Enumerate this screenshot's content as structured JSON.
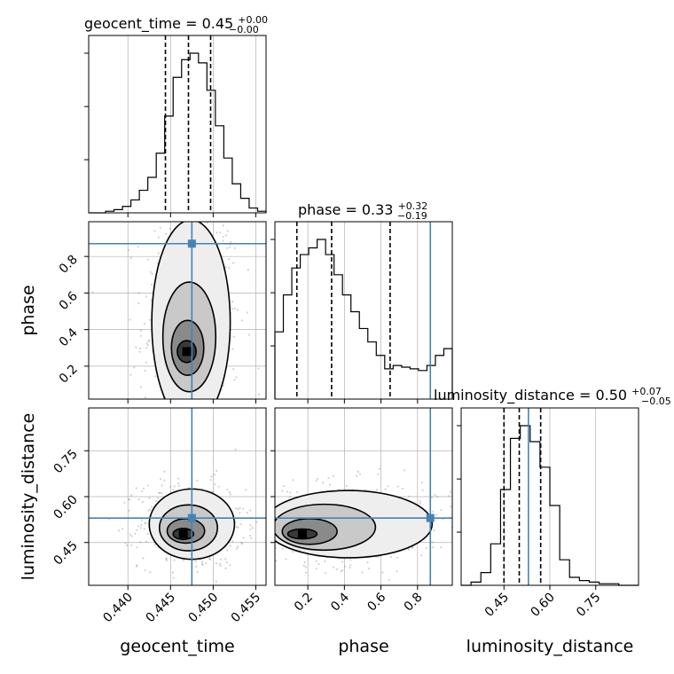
{
  "chart_data": {
    "type": "corner",
    "parameters": [
      "geocent_time",
      "phase",
      "luminosity_distance"
    ],
    "injection": {
      "geocent_time": 0.4475,
      "phase": 0.87,
      "luminosity_distance": 0.53
    },
    "ranges": {
      "geocent_time": [
        0.4354,
        0.4562
      ],
      "phase": [
        0.02,
        0.99
      ],
      "luminosity_distance": [
        0.31,
        0.89
      ]
    },
    "titles": {
      "geocent_time": {
        "label": "geocent_time = 0.45",
        "plus": "+0.00",
        "minus": "−0.00"
      },
      "phase": {
        "label": "phase = 0.33",
        "plus": "+0.32",
        "minus": "−0.19"
      },
      "luminosity_distance": {
        "label": "luminosity_distance = 0.50",
        "plus": "+0.07",
        "minus": "−0.05"
      }
    },
    "quantiles": {
      "geocent_time": [
        0.4444,
        0.4471,
        0.4497
      ],
      "phase": [
        0.14,
        0.33,
        0.65
      ],
      "luminosity_distance": [
        0.45,
        0.5,
        0.57
      ]
    },
    "ticks": {
      "geocent_time": [
        "0.440",
        "0.445",
        "0.450",
        "0.455"
      ],
      "phase_x": [
        "0.2",
        "0.4",
        "0.6",
        "0.8"
      ],
      "phase_y": [
        "0.2",
        "0.4",
        "0.6",
        "0.8"
      ],
      "luminosity_distance": [
        "0.45",
        "0.60",
        "0.75"
      ]
    },
    "histograms": {
      "geocent_time": [
        0,
        0,
        1,
        2,
        4,
        8,
        14,
        22,
        37,
        60,
        84,
        95,
        99,
        93,
        76,
        54,
        34,
        18,
        9,
        3,
        1
      ],
      "phase": [
        40,
        62,
        78,
        86,
        90,
        95,
        86,
        74,
        62,
        52,
        42,
        34,
        26,
        18,
        20,
        19,
        18,
        17,
        20,
        26,
        30
      ],
      "luminosity_distance": [
        0,
        2,
        8,
        26,
        60,
        92,
        100,
        90,
        74,
        50,
        16,
        5,
        3,
        2,
        1,
        1,
        0,
        0
      ]
    },
    "contours": {
      "geocent_time_phase": [
        {
          "center": [
            0.4469,
            0.28
          ],
          "radius": [
            0.0011,
            0.06
          ]
        },
        {
          "center": [
            0.447,
            0.3
          ],
          "radius": [
            0.0019,
            0.15
          ]
        },
        {
          "center": [
            0.4472,
            0.36
          ],
          "radius": [
            0.0031,
            0.3
          ]
        },
        {
          "center": [
            0.4474,
            0.44
          ],
          "radius": [
            0.0046,
            0.56
          ]
        }
      ],
      "geocent_time_luminosity_distance": [
        {
          "center": [
            0.4465,
            0.478
          ],
          "radius": [
            0.0012,
            0.018
          ]
        },
        {
          "center": [
            0.4468,
            0.488
          ],
          "radius": [
            0.0022,
            0.04
          ]
        },
        {
          "center": [
            0.4471,
            0.498
          ],
          "radius": [
            0.0034,
            0.075
          ]
        },
        {
          "center": [
            0.4475,
            0.51
          ],
          "radius": [
            0.005,
            0.115
          ]
        }
      ],
      "phase_luminosity_distance": [
        {
          "center": [
            0.17,
            0.478
          ],
          "radius": [
            0.08,
            0.016
          ]
        },
        {
          "center": [
            0.21,
            0.486
          ],
          "radius": [
            0.15,
            0.042
          ]
        },
        {
          "center": [
            0.29,
            0.5
          ],
          "radius": [
            0.28,
            0.075
          ]
        },
        {
          "center": [
            0.42,
            0.51
          ],
          "radius": [
            0.46,
            0.11
          ]
        }
      ]
    },
    "colors": {
      "injection": "#4682b4",
      "line": "#000000",
      "grid": "#b0b0b0",
      "scatter": "#9a9a9a"
    }
  }
}
